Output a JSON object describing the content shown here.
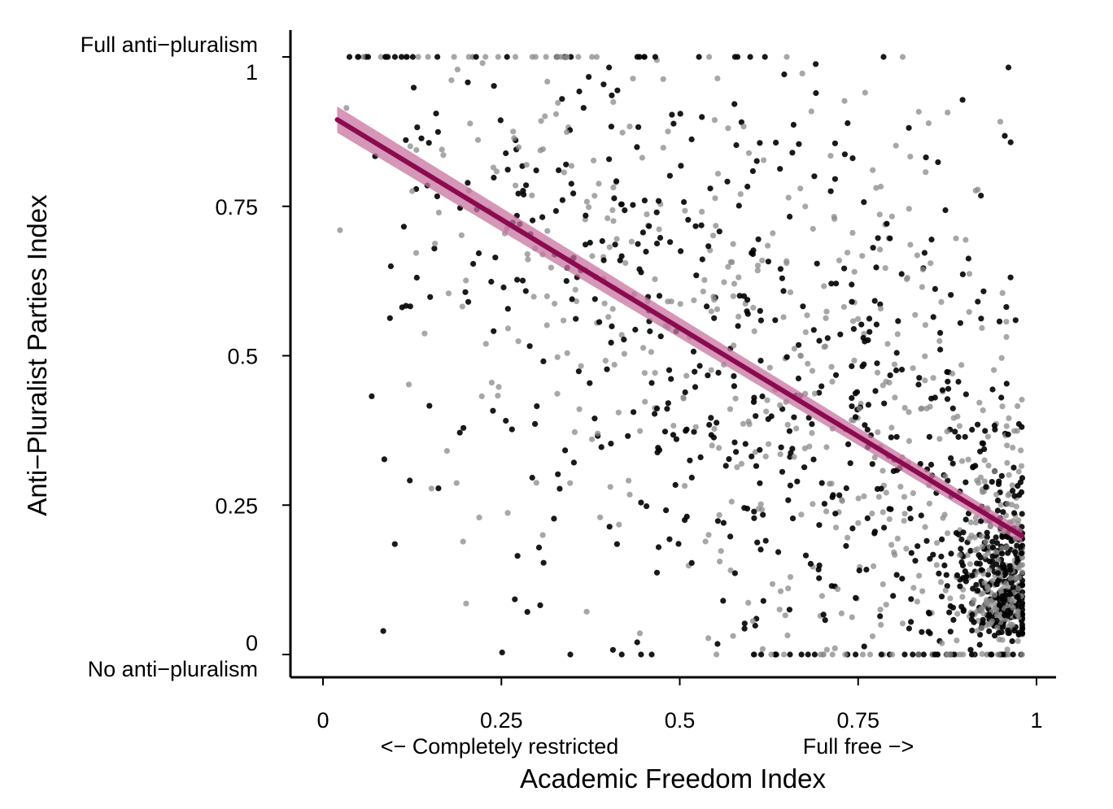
{
  "chart_data": {
    "type": "scatter",
    "title": "",
    "xlabel": "Academic Freedom Index",
    "ylabel": "Anti−Pluralist Parties Index",
    "xlim": [
      -0.09,
      1.03
    ],
    "ylim": [
      -0.04,
      1.05
    ],
    "x_ticks": [
      {
        "value": 0,
        "label": "0"
      },
      {
        "value": 0.25,
        "label": "0.25"
      },
      {
        "value": 0.5,
        "label": "0.5"
      },
      {
        "value": 0.75,
        "label": "0.75"
      },
      {
        "value": 1,
        "label": "1"
      }
    ],
    "y_ticks": [
      {
        "value": 0,
        "label": "0"
      },
      {
        "value": 0.25,
        "label": "0.25"
      },
      {
        "value": 0.5,
        "label": "0.5"
      },
      {
        "value": 0.75,
        "label": "0.75"
      },
      {
        "value": 1,
        "label": "1"
      }
    ],
    "x_annotations": [
      {
        "label": "<− Completely restricted",
        "position": "below-low-end"
      },
      {
        "label": "Full free −>",
        "position": "below-high-end"
      }
    ],
    "y_annotations": [
      {
        "label": "Full anti−pluralism",
        "position": "above-top-tick"
      },
      {
        "label": "No anti−pluralism",
        "position": "below-bottom-tick"
      }
    ],
    "grid": false,
    "legend": "none",
    "fit_line": {
      "color": "#8b0a50",
      "band_color": "#c8739f",
      "start": [
        0.02,
        0.895
      ],
      "end": [
        0.98,
        0.198
      ],
      "band_halfwidth": [
        0.022,
        0.012
      ]
    },
    "points": {
      "color_dark": "#000000",
      "color_light": "#8a8a8a",
      "count": 1650,
      "x_range": [
        0.02,
        0.98
      ],
      "y_range": [
        0.0,
        1.0
      ],
      "description_of_distribution": "negative relationship; dense cluster at high academic freedom and low anti-pluralism"
    }
  }
}
